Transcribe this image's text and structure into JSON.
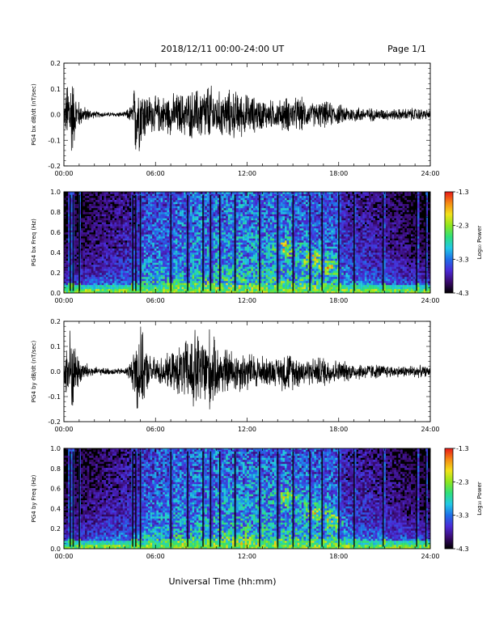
{
  "header": {
    "title": "2018/12/11   00:00-24:00 UT",
    "page": "Page 1/1"
  },
  "footer": {
    "xlabel": "Universal Time (hh:mm)"
  },
  "colorbar": {
    "label": "Log₁₀ Power",
    "ticks": [
      "-1.3",
      "-2.3",
      "-3.3",
      "-4.3"
    ],
    "tick_values": [
      -1.3,
      -2.3,
      -3.3,
      -4.3
    ],
    "range": [
      -4.3,
      -1.3
    ],
    "colormap": [
      "#000000",
      "#3a0a6e",
      "#4b2ad6",
      "#1f6ee8",
      "#22c8e6",
      "#2fe07a",
      "#8ee61e",
      "#f2e21a",
      "#f58a14",
      "#e81818"
    ]
  },
  "chart_data": [
    {
      "type": "line",
      "ylabel": "PG4 bx dB/dt (nT/sec)",
      "xlim_hours": [
        0,
        24
      ],
      "ylim": [
        -0.2,
        0.2
      ],
      "x_ticks": [
        "00:00",
        "06:00",
        "12:00",
        "18:00",
        "24:00"
      ],
      "y_ticks": [
        "0.2",
        "0.1",
        "0.0",
        "-0.1",
        "-0.2"
      ],
      "y_tick_values": [
        0.2,
        0.1,
        0.0,
        -0.1,
        -0.2
      ],
      "envelope_hours": [
        0,
        0.3,
        0.5,
        0.8,
        1.2,
        2,
        3,
        4,
        4.5,
        4.7,
        5,
        5.5,
        6,
        7,
        8,
        9,
        9.5,
        10,
        11,
        12,
        13,
        14,
        14.5,
        15,
        15.5,
        16,
        17,
        18,
        19,
        20,
        21,
        22,
        23,
        24
      ],
      "envelope_amp": [
        0.03,
        0.2,
        0.2,
        0.08,
        0.04,
        0.015,
        0.01,
        0.012,
        0.05,
        0.2,
        0.15,
        0.09,
        0.08,
        0.09,
        0.1,
        0.12,
        0.14,
        0.1,
        0.11,
        0.09,
        0.07,
        0.06,
        0.08,
        0.07,
        0.08,
        0.05,
        0.06,
        0.045,
        0.035,
        0.03,
        0.025,
        0.025,
        0.03,
        0.02
      ]
    },
    {
      "type": "heatmap",
      "ylabel": "PG4 bx Freq (Hz)",
      "xlim_hours": [
        0,
        24
      ],
      "ylim": [
        0.0,
        1.0
      ],
      "x_ticks": [
        "00:00",
        "06:00",
        "12:00",
        "18:00",
        "24:00"
      ],
      "y_ticks": [
        "1.0",
        "0.8",
        "0.6",
        "0.4",
        "0.2",
        "0.0"
      ],
      "y_tick_values": [
        1.0,
        0.8,
        0.6,
        0.4,
        0.2,
        0.0
      ],
      "zlim": [
        -4.3,
        -1.3
      ],
      "spike_hours": [
        0.4,
        0.6,
        1.0,
        4.5,
        4.7,
        5.0,
        7.0,
        8.1,
        9.1,
        9.6,
        10.2,
        11.2,
        12.8,
        14.0,
        15.0,
        16.1,
        16.9,
        18.0,
        19.0,
        20.9,
        23.1,
        23.7
      ],
      "blob_hours": [
        [
          14.4,
          0.45
        ],
        [
          16.2,
          0.35
        ],
        [
          17.4,
          0.25
        ]
      ]
    },
    {
      "type": "line",
      "ylabel": "PG4 by dB/dt (nT/sec)",
      "xlim_hours": [
        0,
        24
      ],
      "ylim": [
        -0.2,
        0.2
      ],
      "x_ticks": [
        "00:00",
        "06:00",
        "12:00",
        "18:00",
        "24:00"
      ],
      "y_ticks": [
        "0.2",
        "0.1",
        "0.0",
        "-0.1",
        "-0.2"
      ],
      "y_tick_values": [
        0.2,
        0.1,
        0.0,
        -0.1,
        -0.2
      ],
      "envelope_hours": [
        0,
        0.3,
        0.5,
        0.8,
        1.2,
        2,
        3,
        4,
        4.5,
        4.7,
        5,
        5.5,
        6,
        7,
        8,
        8.5,
        9,
        9.5,
        10,
        11,
        12,
        13,
        14,
        14.5,
        15,
        15.5,
        16,
        17,
        18,
        19,
        20,
        21,
        22,
        23,
        24
      ],
      "envelope_amp": [
        0.03,
        0.2,
        0.2,
        0.1,
        0.05,
        0.02,
        0.015,
        0.015,
        0.06,
        0.2,
        0.2,
        0.08,
        0.06,
        0.08,
        0.14,
        0.2,
        0.16,
        0.2,
        0.12,
        0.1,
        0.09,
        0.07,
        0.06,
        0.1,
        0.08,
        0.07,
        0.06,
        0.07,
        0.05,
        0.04,
        0.035,
        0.03,
        0.025,
        0.03,
        0.02
      ]
    },
    {
      "type": "heatmap",
      "ylabel": "PG4 by Freq (Hz)",
      "xlim_hours": [
        0,
        24
      ],
      "ylim": [
        0.0,
        1.0
      ],
      "x_ticks": [
        "00:00",
        "06:00",
        "12:00",
        "18:00",
        "24:00"
      ],
      "y_ticks": [
        "1.0",
        "0.8",
        "0.6",
        "0.4",
        "0.2",
        "0.0"
      ],
      "y_tick_values": [
        1.0,
        0.8,
        0.6,
        0.4,
        0.2,
        0.0
      ],
      "zlim": [
        -4.3,
        -1.3
      ],
      "spike_hours": [
        0.4,
        0.6,
        1.0,
        4.5,
        4.7,
        5.0,
        7.0,
        8.1,
        9.1,
        9.6,
        10.2,
        11.2,
        12.8,
        14.0,
        15.0,
        16.1,
        16.9,
        18.0,
        19.0,
        20.9,
        23.1,
        23.7
      ],
      "blob_hours": [
        [
          14.6,
          0.5
        ],
        [
          16.4,
          0.38
        ],
        [
          17.6,
          0.28
        ]
      ]
    }
  ]
}
